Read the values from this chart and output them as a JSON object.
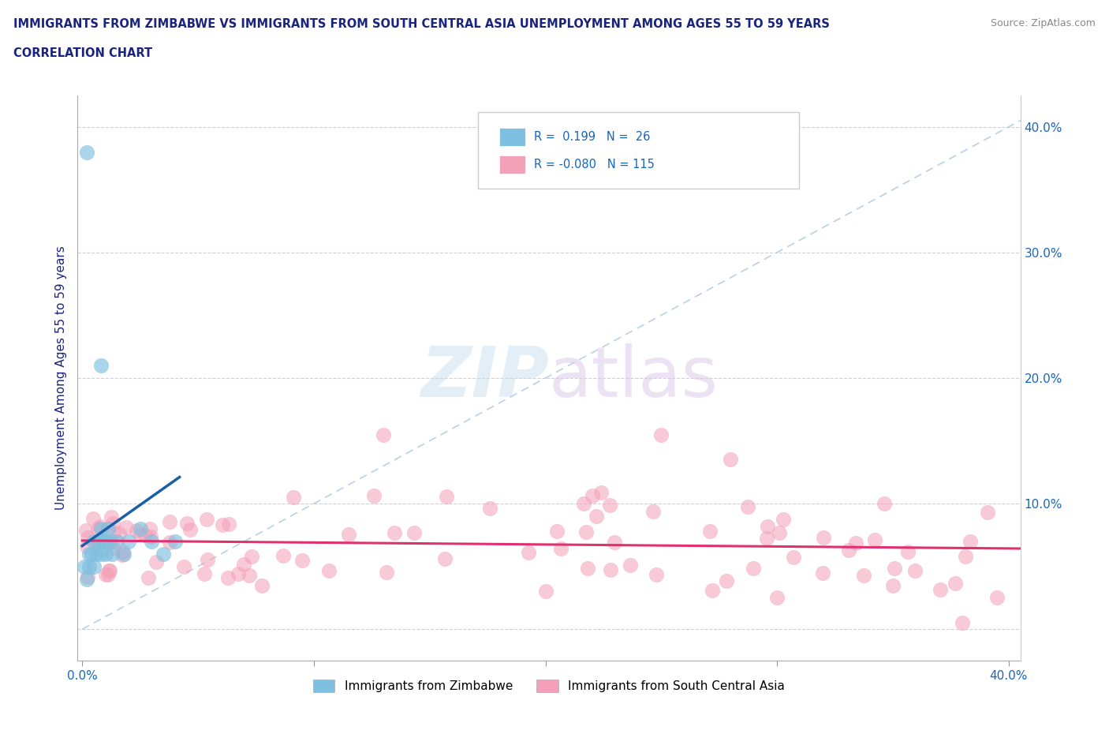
{
  "title_line1": "IMMIGRANTS FROM ZIMBABWE VS IMMIGRANTS FROM SOUTH CENTRAL ASIA UNEMPLOYMENT AMONG AGES 55 TO 59 YEARS",
  "title_line2": "CORRELATION CHART",
  "source": "Source: ZipAtlas.com",
  "ylabel": "Unemployment Among Ages 55 to 59 years",
  "y_ticks": [
    0.0,
    0.1,
    0.2,
    0.3,
    0.4
  ],
  "xlim": [
    -0.002,
    0.405
  ],
  "ylim": [
    -0.025,
    0.425
  ],
  "legend_label1": "Immigrants from Zimbabwe",
  "legend_label2": "Immigrants from South Central Asia",
  "blue_color": "#7fbfdf",
  "pink_color": "#f4a0b8",
  "blue_line_color": "#1a5fa8",
  "pink_line_color": "#e03070",
  "ref_line_color": "#aac4e0",
  "R_zimbabwe": 0.199,
  "R_sca": -0.08,
  "watermark_zip": "ZIP",
  "watermark_atlas": "atlas"
}
